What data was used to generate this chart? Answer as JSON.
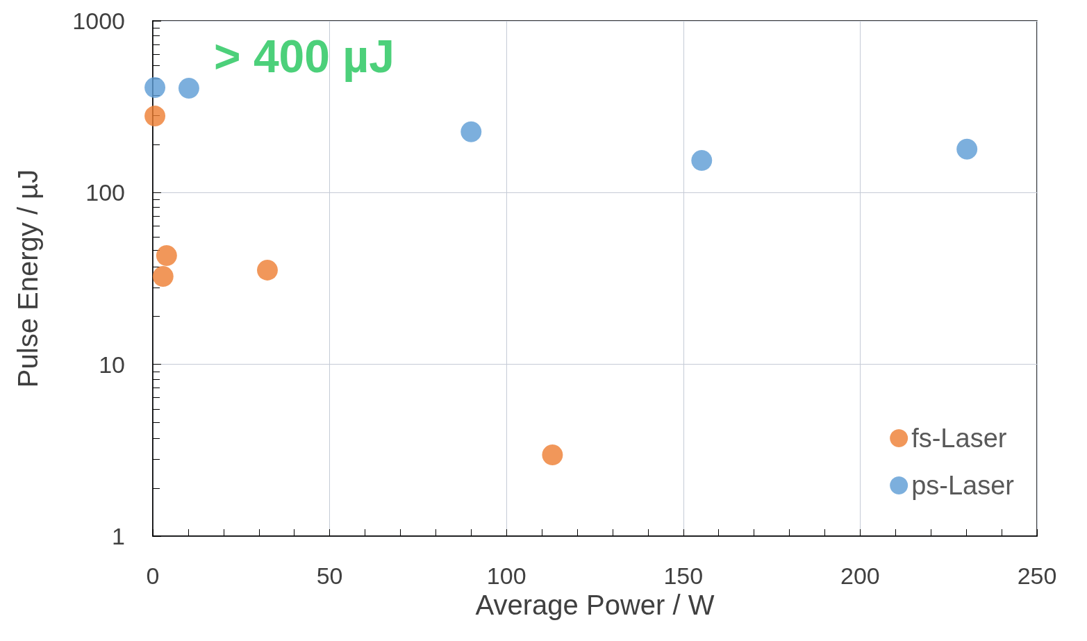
{
  "chart_data": {
    "type": "scatter",
    "xlabel": "Average Power / W",
    "ylabel": "Pulse Energy / µJ",
    "annotations": [
      "> 400 µJ"
    ],
    "series": [
      {
        "name": "fs-Laser",
        "color": "#ed7d31",
        "x": [
          0.6,
          3.9,
          2.9,
          32.4,
          113
        ],
        "values": [
          279,
          43,
          32.5,
          35.4,
          2.97
        ]
      },
      {
        "name": "ps-Laser",
        "color": "#5b9bd5",
        "x": [
          0.6,
          10.2,
          90,
          155.2,
          230.2
        ],
        "values": [
          409,
          405,
          226,
          154,
          179
        ]
      }
    ],
    "xlim": [
      0,
      250
    ],
    "xticks": [
      0,
      50,
      100,
      150,
      200,
      250
    ],
    "ylim": [
      1,
      1000
    ],
    "yticks": [
      1,
      10,
      100,
      1000
    ],
    "log": "y",
    "grid": true,
    "legend": "bottom right",
    "marker": "circle"
  }
}
